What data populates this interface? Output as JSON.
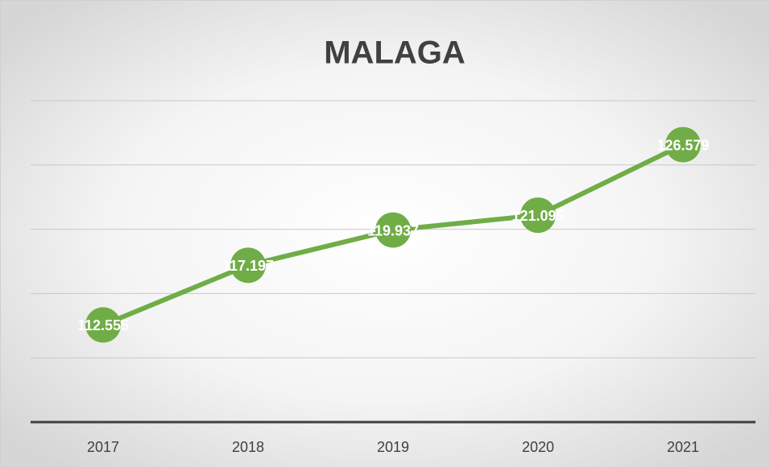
{
  "chart_data": {
    "type": "line",
    "title": "MALAGA",
    "categories": [
      "2017",
      "2018",
      "2019",
      "2020",
      "2021"
    ],
    "series": [
      {
        "name": "MALAGA",
        "color": "#70ad47",
        "values": [
          112555,
          117197,
          119937,
          121095,
          126579
        ],
        "value_labels": [
          "112.555",
          "117.197",
          "119.937",
          "121.095",
          "126.579"
        ]
      }
    ],
    "ylim": [
      105000,
      130000
    ],
    "yticks": [
      105000,
      110000,
      115000,
      120000,
      125000,
      130000
    ],
    "grid": true
  }
}
